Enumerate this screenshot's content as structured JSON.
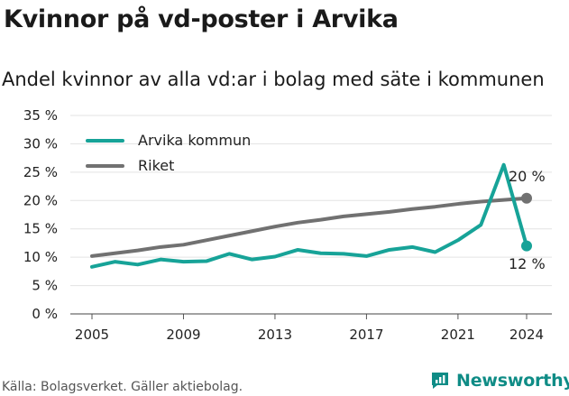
{
  "title": "Kvinnor på vd-poster i Arvika",
  "subtitle": "Andel kvinnor av alla vd:ar i bolag med säte i kommunen",
  "source": "Källa: Bolagsverket. Gäller aktiebolag.",
  "brand": "Newsworthy",
  "colors": {
    "arvika": "#17a398",
    "riket": "#717171",
    "grid": "#e3e3e3",
    "brand": "#0f8c86"
  },
  "chart_data": {
    "type": "line",
    "x": [
      2005,
      2006,
      2007,
      2008,
      2009,
      2010,
      2011,
      2012,
      2013,
      2014,
      2015,
      2016,
      2017,
      2018,
      2019,
      2020,
      2021,
      2022,
      2023,
      2024
    ],
    "series": [
      {
        "name": "Arvika kommun",
        "color": "#17a398",
        "values": [
          8.3,
          9.2,
          8.7,
          9.6,
          9.2,
          9.3,
          10.6,
          9.6,
          10.1,
          11.3,
          10.7,
          10.6,
          10.2,
          11.3,
          11.8,
          10.9,
          13.0,
          15.7,
          26.3,
          12.0
        ]
      },
      {
        "name": "Riket",
        "color": "#717171",
        "values": [
          10.2,
          10.7,
          11.2,
          11.8,
          12.2,
          13.0,
          13.8,
          14.6,
          15.4,
          16.1,
          16.6,
          17.2,
          17.6,
          18.0,
          18.5,
          18.9,
          19.4,
          19.8,
          20.1,
          20.4
        ]
      }
    ],
    "xticks": [
      "2005",
      "2009",
      "2013",
      "2017",
      "2021",
      "2024"
    ],
    "yticks": [
      "0 %",
      "5 %",
      "10 %",
      "15 %",
      "20 %",
      "25 %",
      "30 %",
      "35 %"
    ],
    "ylim": [
      0,
      35
    ],
    "end_labels": {
      "riket": "20 %",
      "arvika": "12 %"
    },
    "legend": [
      "Arvika kommun",
      "Riket"
    ],
    "grid": true,
    "legend_position": "top-left"
  }
}
